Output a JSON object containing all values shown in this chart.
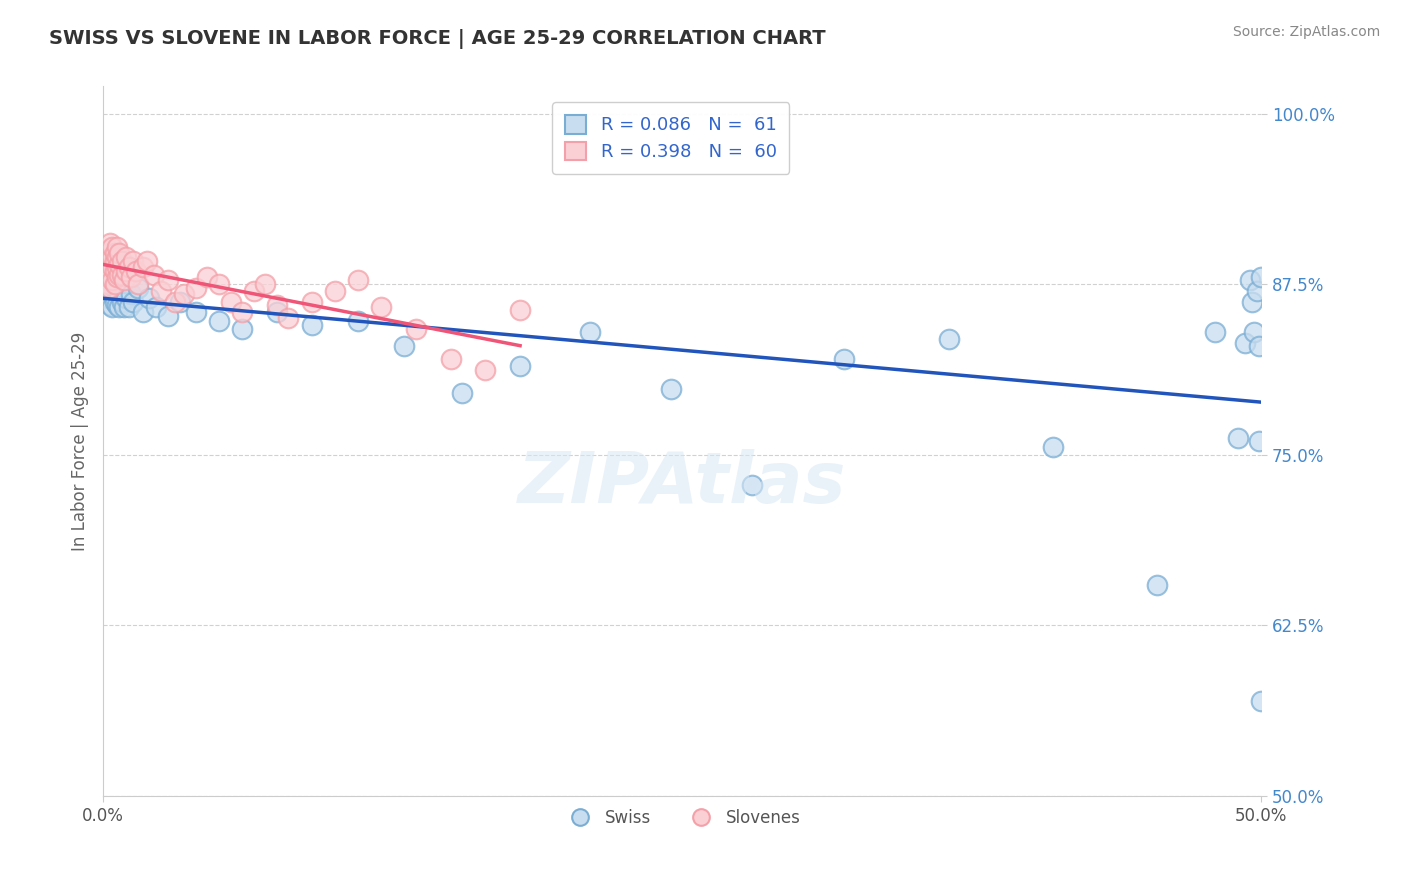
{
  "title": "SWISS VS SLOVENE IN LABOR FORCE | AGE 25-29 CORRELATION CHART",
  "source_text": "Source: ZipAtlas.com",
  "ylabel": "In Labor Force | Age 25-29",
  "xlim": [
    0.0,
    0.5
  ],
  "ylim": [
    0.5,
    1.02
  ],
  "ytick_positions": [
    0.5,
    0.625,
    0.75,
    0.875,
    1.0
  ],
  "ytick_labels": [
    "50.0%",
    "62.5%",
    "75.0%",
    "87.5%",
    "100.0%"
  ],
  "swiss_R": 0.086,
  "swiss_N": 61,
  "slovene_R": 0.398,
  "slovene_N": 60,
  "swiss_color": "#7AADD4",
  "slovene_color": "#F4A0A8",
  "swiss_line_color": "#2255BB",
  "slovene_line_color": "#EE5577",
  "swiss_x": [
    0.001,
    0.002,
    0.002,
    0.003,
    0.003,
    0.003,
    0.004,
    0.004,
    0.004,
    0.005,
    0.005,
    0.005,
    0.005,
    0.006,
    0.006,
    0.006,
    0.007,
    0.007,
    0.007,
    0.008,
    0.008,
    0.009,
    0.009,
    0.01,
    0.01,
    0.011,
    0.012,
    0.013,
    0.015,
    0.017,
    0.02,
    0.023,
    0.028,
    0.033,
    0.04,
    0.05,
    0.06,
    0.075,
    0.09,
    0.11,
    0.13,
    0.155,
    0.18,
    0.21,
    0.245,
    0.28,
    0.32,
    0.365,
    0.41,
    0.455,
    0.48,
    0.49,
    0.493,
    0.495,
    0.496,
    0.497,
    0.498,
    0.499,
    0.499,
    0.5,
    0.5
  ],
  "swiss_y": [
    0.872,
    0.865,
    0.878,
    0.86,
    0.87,
    0.88,
    0.858,
    0.868,
    0.878,
    0.862,
    0.872,
    0.882,
    0.876,
    0.86,
    0.872,
    0.882,
    0.858,
    0.868,
    0.878,
    0.862,
    0.875,
    0.858,
    0.872,
    0.865,
    0.876,
    0.858,
    0.868,
    0.862,
    0.872,
    0.855,
    0.865,
    0.858,
    0.852,
    0.862,
    0.855,
    0.848,
    0.842,
    0.855,
    0.845,
    0.848,
    0.83,
    0.795,
    0.815,
    0.84,
    0.798,
    0.728,
    0.82,
    0.835,
    0.756,
    0.655,
    0.84,
    0.762,
    0.832,
    0.878,
    0.862,
    0.84,
    0.87,
    0.76,
    0.83,
    0.88,
    0.57
  ],
  "slovene_x": [
    0.001,
    0.001,
    0.002,
    0.002,
    0.002,
    0.002,
    0.003,
    0.003,
    0.003,
    0.003,
    0.003,
    0.004,
    0.004,
    0.004,
    0.004,
    0.005,
    0.005,
    0.005,
    0.005,
    0.006,
    0.006,
    0.006,
    0.006,
    0.007,
    0.007,
    0.007,
    0.008,
    0.008,
    0.009,
    0.01,
    0.01,
    0.011,
    0.012,
    0.013,
    0.014,
    0.015,
    0.017,
    0.019,
    0.022,
    0.025,
    0.028,
    0.031,
    0.035,
    0.04,
    0.045,
    0.05,
    0.055,
    0.06,
    0.065,
    0.07,
    0.075,
    0.08,
    0.09,
    0.1,
    0.11,
    0.12,
    0.135,
    0.15,
    0.165,
    0.18
  ],
  "slovene_y": [
    0.882,
    0.892,
    0.875,
    0.885,
    0.895,
    0.9,
    0.872,
    0.882,
    0.892,
    0.898,
    0.905,
    0.878,
    0.888,
    0.895,
    0.902,
    0.875,
    0.885,
    0.892,
    0.898,
    0.88,
    0.888,
    0.895,
    0.902,
    0.882,
    0.89,
    0.898,
    0.882,
    0.892,
    0.878,
    0.885,
    0.895,
    0.888,
    0.88,
    0.892,
    0.885,
    0.875,
    0.888,
    0.892,
    0.882,
    0.87,
    0.878,
    0.862,
    0.868,
    0.872,
    0.88,
    0.875,
    0.862,
    0.855,
    0.87,
    0.875,
    0.86,
    0.85,
    0.862,
    0.87,
    0.878,
    0.858,
    0.842,
    0.82,
    0.812,
    0.856
  ]
}
